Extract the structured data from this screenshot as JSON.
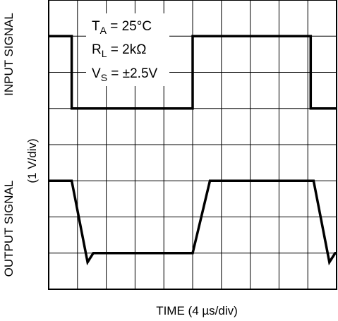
{
  "chart_data": {
    "type": "line",
    "xlabel": "TIME (4 µs/div)",
    "ylabel_top": "INPUT SIGNAL",
    "ylabel_bottom": "OUTPUT SIGNAL",
    "ylabel_scale": "(1 V/div)",
    "x_divisions": 10,
    "y_divisions": 8,
    "grid": true,
    "conditions": [
      {
        "main": "T",
        "sub": "A",
        "rest": " = 25°C"
      },
      {
        "main": "R",
        "sub": "L",
        "rest": " = 2kΩ"
      },
      {
        "main": "V",
        "sub": "S",
        "rest": " = ±2.5V"
      }
    ],
    "series": [
      {
        "x": [
          0,
          0.8,
          0.8,
          5.0,
          5.0,
          9.1,
          9.1,
          10
        ],
        "y": [
          7.0,
          7.0,
          5.0,
          5.0,
          7.0,
          7.0,
          5.0,
          5.0
        ]
      },
      {
        "x": [
          0,
          0.8,
          1.35,
          1.55,
          5.0,
          5.6,
          9.2,
          9.75,
          9.95,
          10
        ],
        "y": [
          3.0,
          3.0,
          0.75,
          1.0,
          1.0,
          3.0,
          3.0,
          0.75,
          1.0,
          1.0
        ]
      }
    ]
  }
}
